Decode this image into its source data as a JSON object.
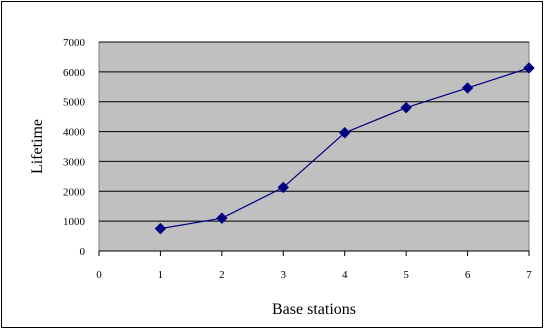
{
  "chart_data": {
    "type": "line",
    "title": "",
    "xlabel": "Base stations",
    "ylabel": "Lifetime",
    "x_ticks": [
      "0",
      "1",
      "2",
      "3",
      "4",
      "5",
      "6",
      "7"
    ],
    "y_ticks": [
      "0",
      "1000",
      "2000",
      "3000",
      "4000",
      "5000",
      "6000",
      "7000"
    ],
    "xlim": [
      0,
      7
    ],
    "ylim": [
      0,
      7000
    ],
    "grid": "horizontal",
    "legend": "none",
    "series": [
      {
        "x": [
          1,
          2,
          3,
          4,
          5,
          6,
          7
        ],
        "values": [
          750,
          1100,
          2130,
          3960,
          4800,
          5460,
          6130
        ]
      }
    ],
    "colors": {
      "plot_background": "#c0c0c0",
      "line": "#000080",
      "marker": "#000080",
      "gridline": "#000000"
    }
  }
}
